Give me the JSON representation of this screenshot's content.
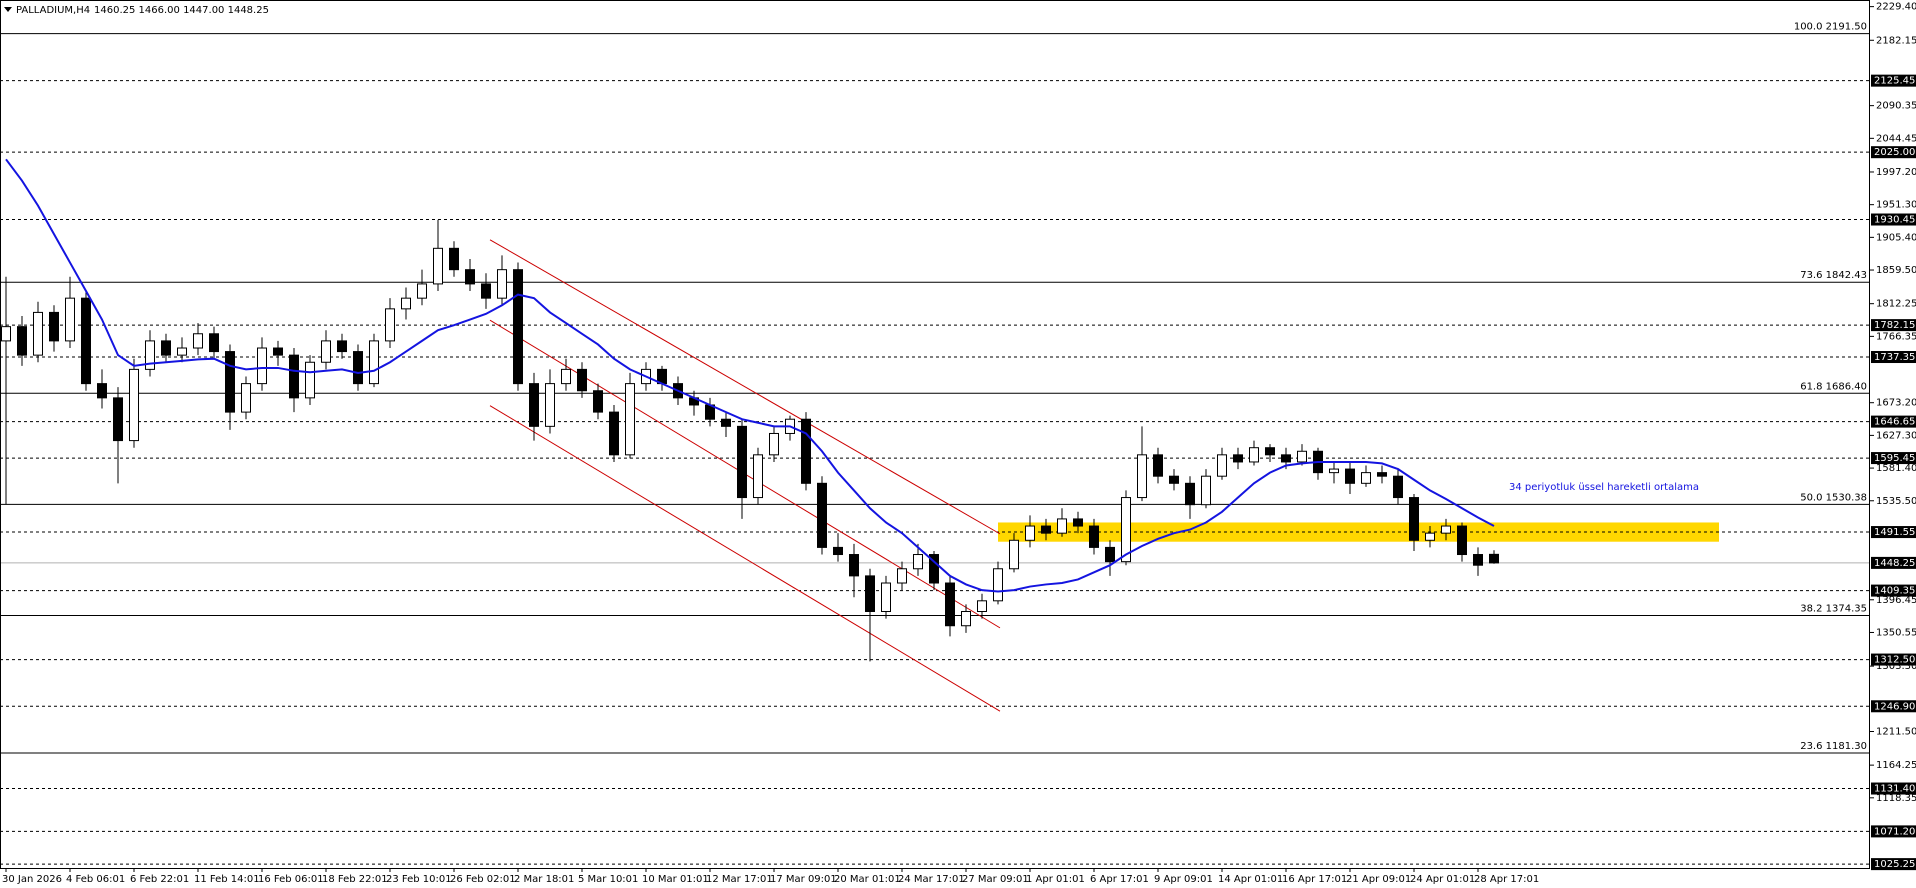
{
  "chart_data": {
    "type": "candlestick",
    "header": {
      "symbol": "PALLADIUM,H4",
      "quote": "1460.25 1466.00 1447.00 1448.25"
    },
    "categories": [
      "30 Jan 2026",
      null,
      null,
      null,
      "4 Feb 06:01",
      null,
      null,
      null,
      "6 Feb 22:01",
      null,
      null,
      null,
      "11 Feb 14:01",
      null,
      null,
      null,
      "16 Feb 06:01",
      null,
      null,
      null,
      "18 Feb 22:01",
      null,
      null,
      null,
      "23 Feb 10:01",
      null,
      null,
      null,
      "26 Feb 02:01",
      null,
      null,
      null,
      "2 Mar 18:01",
      null,
      null,
      null,
      "5 Mar 10:01",
      null,
      null,
      null,
      "10 Mar 01:01",
      null,
      null,
      null,
      "12 Mar 17:01",
      null,
      null,
      null,
      "17 Mar 09:01",
      null,
      null,
      null,
      "20 Mar 01:01",
      null,
      null,
      null,
      "24 Mar 17:01",
      null,
      null,
      null,
      "27 Mar 09:01",
      null,
      null,
      null,
      "1 Apr 01:01",
      null,
      null,
      null,
      "6 Apr 17:01",
      null,
      null,
      null,
      "9 Apr 09:01",
      null,
      null,
      null,
      "14 Apr 01:01",
      null,
      null,
      null,
      "16 Apr 17:01",
      null,
      null,
      null,
      "21 Apr 09:01",
      null,
      null,
      null,
      "24 Apr 01:01",
      null,
      null,
      null,
      "28 Apr 17:01",
      null
    ],
    "open": [
      1760,
      1780,
      1740,
      1800,
      1760,
      1820,
      1700,
      1680,
      1620,
      1720,
      1760,
      1740,
      1750,
      1770,
      1745,
      1660,
      1700,
      1750,
      1740,
      1680,
      1730,
      1760,
      1745,
      1700,
      1760,
      1805,
      1820,
      1840,
      1890,
      1860,
      1840,
      1820,
      1860,
      1700,
      1640,
      1700,
      1720,
      1690,
      1660,
      1600,
      1700,
      1720,
      1700,
      1680,
      1670,
      1650,
      1640,
      1540,
      1600,
      1630,
      1650,
      1560,
      1470,
      1460,
      1430,
      1380,
      1420,
      1440,
      1460,
      1420,
      1360,
      1380,
      1395,
      1440,
      1480,
      1500,
      1490,
      1510,
      1500,
      1470,
      1450,
      1540,
      1600,
      1570,
      1560,
      1530,
      1570,
      1600,
      1590,
      1610,
      1600,
      1590,
      1605,
      1575,
      1580,
      1560,
      1575,
      1570,
      1540,
      1480,
      1490,
      1500,
      1460,
      1460.25
    ],
    "high": [
      1850,
      1795,
      1815,
      1810,
      1850,
      1830,
      1720,
      1695,
      1735,
      1775,
      1770,
      1765,
      1785,
      1780,
      1755,
      1710,
      1765,
      1760,
      1750,
      1740,
      1775,
      1770,
      1755,
      1770,
      1820,
      1835,
      1860,
      1930,
      1900,
      1875,
      1855,
      1880,
      1870,
      1715,
      1720,
      1735,
      1730,
      1700,
      1670,
      1715,
      1730,
      1725,
      1710,
      1690,
      1680,
      1660,
      1650,
      1610,
      1640,
      1655,
      1660,
      1570,
      1490,
      1475,
      1440,
      1430,
      1450,
      1475,
      1465,
      1430,
      1390,
      1405,
      1450,
      1490,
      1515,
      1510,
      1525,
      1520,
      1510,
      1480,
      1550,
      1640,
      1610,
      1580,
      1570,
      1580,
      1610,
      1610,
      1620,
      1615,
      1610,
      1615,
      1610,
      1590,
      1590,
      1585,
      1585,
      1580,
      1545,
      1500,
      1510,
      1505,
      1470,
      1466
    ],
    "low": [
      1530,
      1725,
      1730,
      1745,
      1750,
      1690,
      1665,
      1560,
      1610,
      1710,
      1730,
      1730,
      1740,
      1735,
      1635,
      1650,
      1690,
      1725,
      1660,
      1670,
      1720,
      1735,
      1690,
      1695,
      1750,
      1790,
      1810,
      1830,
      1850,
      1830,
      1805,
      1810,
      1690,
      1620,
      1630,
      1690,
      1680,
      1650,
      1590,
      1595,
      1690,
      1690,
      1670,
      1655,
      1640,
      1625,
      1510,
      1530,
      1590,
      1620,
      1550,
      1460,
      1450,
      1400,
      1310,
      1370,
      1410,
      1430,
      1410,
      1345,
      1350,
      1370,
      1390,
      1435,
      1470,
      1480,
      1485,
      1490,
      1460,
      1430,
      1445,
      1535,
      1560,
      1550,
      1510,
      1525,
      1565,
      1580,
      1585,
      1590,
      1580,
      1585,
      1565,
      1560,
      1545,
      1555,
      1560,
      1530,
      1465,
      1470,
      1480,
      1450,
      1430,
      1447
    ],
    "close": [
      1780,
      1740,
      1800,
      1760,
      1820,
      1700,
      1680,
      1620,
      1720,
      1760,
      1740,
      1750,
      1770,
      1745,
      1660,
      1700,
      1750,
      1740,
      1680,
      1730,
      1760,
      1745,
      1700,
      1760,
      1805,
      1820,
      1840,
      1890,
      1860,
      1840,
      1820,
      1860,
      1700,
      1640,
      1700,
      1720,
      1690,
      1660,
      1600,
      1700,
      1720,
      1700,
      1680,
      1670,
      1650,
      1640,
      1540,
      1600,
      1630,
      1650,
      1560,
      1470,
      1460,
      1430,
      1380,
      1420,
      1440,
      1460,
      1420,
      1360,
      1380,
      1395,
      1440,
      1480,
      1500,
      1490,
      1510,
      1500,
      1470,
      1450,
      1540,
      1600,
      1570,
      1560,
      1530,
      1570,
      1600,
      1590,
      1610,
      1600,
      1590,
      1605,
      1575,
      1580,
      1560,
      1575,
      1570,
      1540,
      1480,
      1490,
      1500,
      1460,
      1445,
      1448.25
    ],
    "up_color": "#ffffff",
    "down_color": "#000000",
    "series": [
      {
        "name": "34 periyotluk üssel hareketli ortalama",
        "color": "#1414e0",
        "values": [
          2015,
          1985,
          1950,
          1910,
          1870,
          1830,
          1790,
          1740,
          1725,
          1728,
          1730,
          1732,
          1734,
          1735,
          1725,
          1720,
          1722,
          1722,
          1718,
          1716,
          1718,
          1720,
          1715,
          1718,
          1730,
          1745,
          1760,
          1775,
          1782,
          1790,
          1798,
          1810,
          1825,
          1820,
          1800,
          1785,
          1770,
          1755,
          1735,
          1720,
          1710,
          1700,
          1690,
          1680,
          1670,
          1660,
          1650,
          1645,
          1640,
          1640,
          1630,
          1605,
          1575,
          1550,
          1525,
          1505,
          1490,
          1470,
          1450,
          1430,
          1418,
          1410,
          1408,
          1410,
          1415,
          1418,
          1420,
          1425,
          1435,
          1445,
          1460,
          1472,
          1482,
          1490,
          1495,
          1505,
          1520,
          1540,
          1560,
          1575,
          1585,
          1588,
          1590,
          1590,
          1590,
          1590,
          1588,
          1580,
          1565,
          1550,
          1538,
          1525,
          1512,
          1500
        ]
      }
    ],
    "ylim": [
      1019.8,
      2238.7
    ],
    "yticks": [
      {
        "value": 2229.4,
        "label": "2229.40"
      },
      {
        "value": 2182.15,
        "label": "2182.15"
      },
      {
        "value": 2090.35,
        "label": "2090.35"
      },
      {
        "value": 2044.45,
        "label": "2044.45"
      },
      {
        "value": 1997.2,
        "label": "1997.20"
      },
      {
        "value": 1951.3,
        "label": "1951.30"
      },
      {
        "value": 1905.4,
        "label": "1905.40"
      },
      {
        "value": 1859.5,
        "label": "1859.50"
      },
      {
        "value": 1812.25,
        "label": "1812.25"
      },
      {
        "value": 1766.35,
        "label": "1766.35"
      },
      {
        "value": 1673.2,
        "label": "1673.20"
      },
      {
        "value": 1627.3,
        "label": "1627.30"
      },
      {
        "value": 1581.4,
        "label": "1581.40"
      },
      {
        "value": 1535.5,
        "label": "1535.50"
      },
      {
        "value": 1396.45,
        "label": "1396.45"
      },
      {
        "value": 1350.55,
        "label": "1350.55"
      },
      {
        "value": 1303.3,
        "label": "1303.30"
      },
      {
        "value": 1211.5,
        "label": "1211.50"
      },
      {
        "value": 1164.25,
        "label": "1164.25"
      },
      {
        "value": 1118.35,
        "label": "1118.35"
      }
    ],
    "levels": [
      {
        "value": 2125.45,
        "label": "2125.45"
      },
      {
        "value": 2025,
        "label": "2025.00"
      },
      {
        "value": 1930.45,
        "label": "1930.45"
      },
      {
        "value": 1782.15,
        "label": "1782.15"
      },
      {
        "value": 1737.35,
        "label": "1737.35"
      },
      {
        "value": 1646.65,
        "label": "1646.65"
      },
      {
        "value": 1595.45,
        "label": "1595.45"
      },
      {
        "value": 1491.55,
        "label": "1491.55"
      },
      {
        "value": 1409.35,
        "label": "1409.35"
      },
      {
        "value": 1312.5,
        "label": "1312.50"
      },
      {
        "value": 1246.9,
        "label": "1246.90"
      },
      {
        "value": 1131.4,
        "label": "1131.40"
      },
      {
        "value": 1071.2,
        "label": "1071.20"
      },
      {
        "value": 1025.25,
        "label": "1025.25"
      }
    ],
    "current_price": {
      "value": 1448.25,
      "label": "1448.25"
    },
    "fib_levels": [
      {
        "value": 2191.5,
        "label": "100.0 2191.50"
      },
      {
        "value": 1842.43,
        "label": "73.6 1842.43"
      },
      {
        "value": 1686.4,
        "label": "61.8 1686.40"
      },
      {
        "value": 1530.38,
        "label": "50.0 1530.38"
      },
      {
        "value": 1374.35,
        "label": "38.2 1374.35"
      },
      {
        "value": 1181.3,
        "label": "23.6 1181.30"
      }
    ],
    "zone": {
      "low": 1478,
      "high": 1505,
      "color": "#ffd700"
    },
    "channel": {
      "color": "#cc0000",
      "lines": [
        {
          "start": 1902,
          "end": 1489
        },
        {
          "start": 1789,
          "end": 1357
        },
        {
          "start": 1669,
          "end": 1240
        }
      ]
    }
  }
}
